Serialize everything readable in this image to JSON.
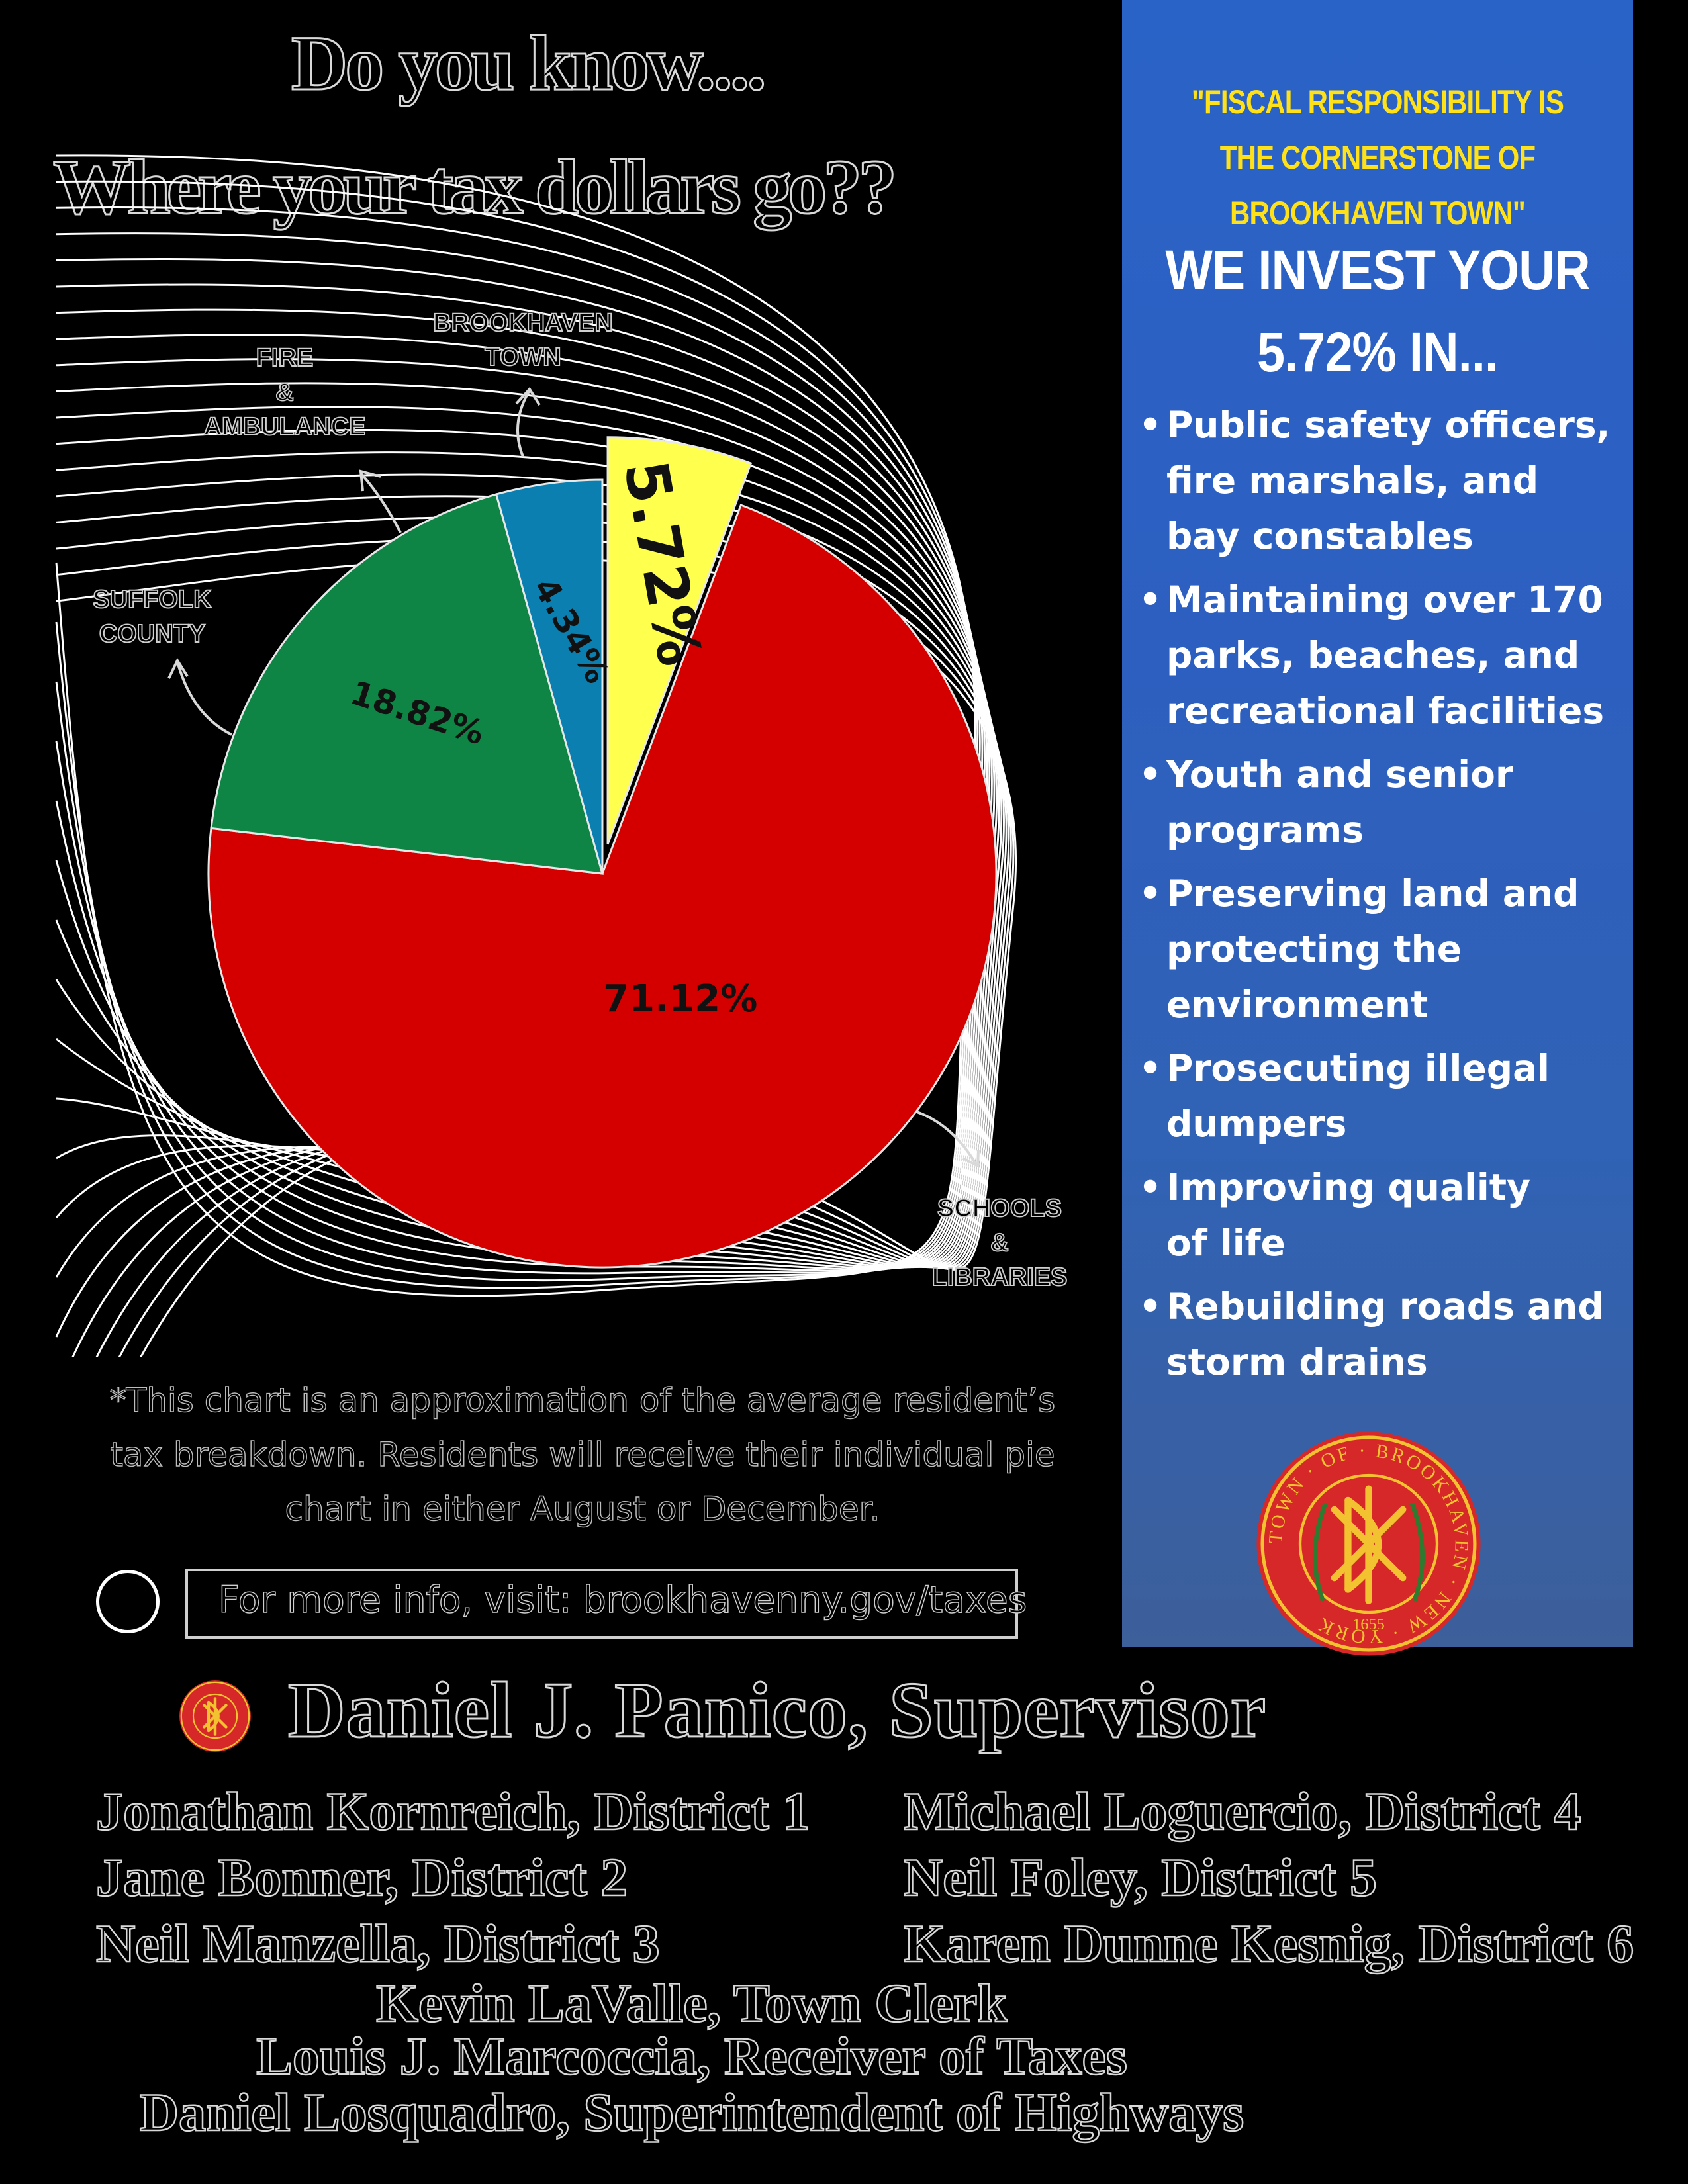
{
  "headline": {
    "line1": "Do you know....",
    "line2": "Where your tax dollars go??"
  },
  "chart_data": {
    "type": "pie",
    "slices": [
      {
        "label": "BROOKHAVEN\nTOWN",
        "value": 5.72,
        "display": "5.72%",
        "color": "#ffff4d"
      },
      {
        "label": "SCHOOLS\n&\nLIBRARIES",
        "value": 71.12,
        "display": "71.12%",
        "color": "#d40000"
      },
      {
        "label": "SUFFOLK\nCOUNTY",
        "value": 18.82,
        "display": "18.82%",
        "color": "#0e8545"
      },
      {
        "label": "FIRE\n&\nAMBULANCE",
        "value": 4.34,
        "display": "4.34%",
        "color": "#0a7fb0"
      }
    ],
    "exploded_slice": "BROOKHAVEN\nTOWN"
  },
  "footnote": "*This chart is an approximation of the average resident’s tax breakdown. Residents will receive their individual pie chart in either August or December.",
  "info": "For more info, visit: brookhavenny.gov/taxes",
  "side_panel": {
    "quote": "\"FISCAL RESPONSIBILITY IS THE CORNERSTONE OF BROOKHAVEN TOWN\"",
    "heading_line1": "WE INVEST YOUR",
    "heading_line2": "5.72% IN...",
    "bullets": [
      "Public safety officers,\nfire marshals, and\nbay constables",
      "Maintaining over 170\nparks, beaches, and\nrecreational facilities",
      "Youth and senior\nprograms",
      "Preserving land and\nprotecting the\nenvironment",
      "Prosecuting illegal\ndumpers",
      "Improving quality\nof life",
      "Rebuilding roads and\nstorm drains"
    ],
    "seal_text": "TOWN · OF · BROOKHAVEN · NEW · YORK",
    "seal_year": "1655"
  },
  "officials": {
    "supervisor": "Daniel J. Panico, Supervisor",
    "council_left": [
      "Jonathan Kornreich, District 1",
      "Jane Bonner, District 2",
      "Neil Manzella, District 3"
    ],
    "council_right": [
      "Michael Loguercio, District 4",
      "Neil Foley, District 5",
      "Karen Dunne Kesnig, District 6"
    ],
    "others": [
      "Kevin LaValle, Town Clerk",
      "Louis J. Marcoccia, Receiver of Taxes",
      "Daniel Losquadro, Superintendent of Highways"
    ]
  },
  "colors": {
    "panel_blue": "#2d5fc0",
    "quote_yellow": "#ffe11a",
    "seal_red": "#d62828",
    "seal_gold": "#f2c230"
  }
}
